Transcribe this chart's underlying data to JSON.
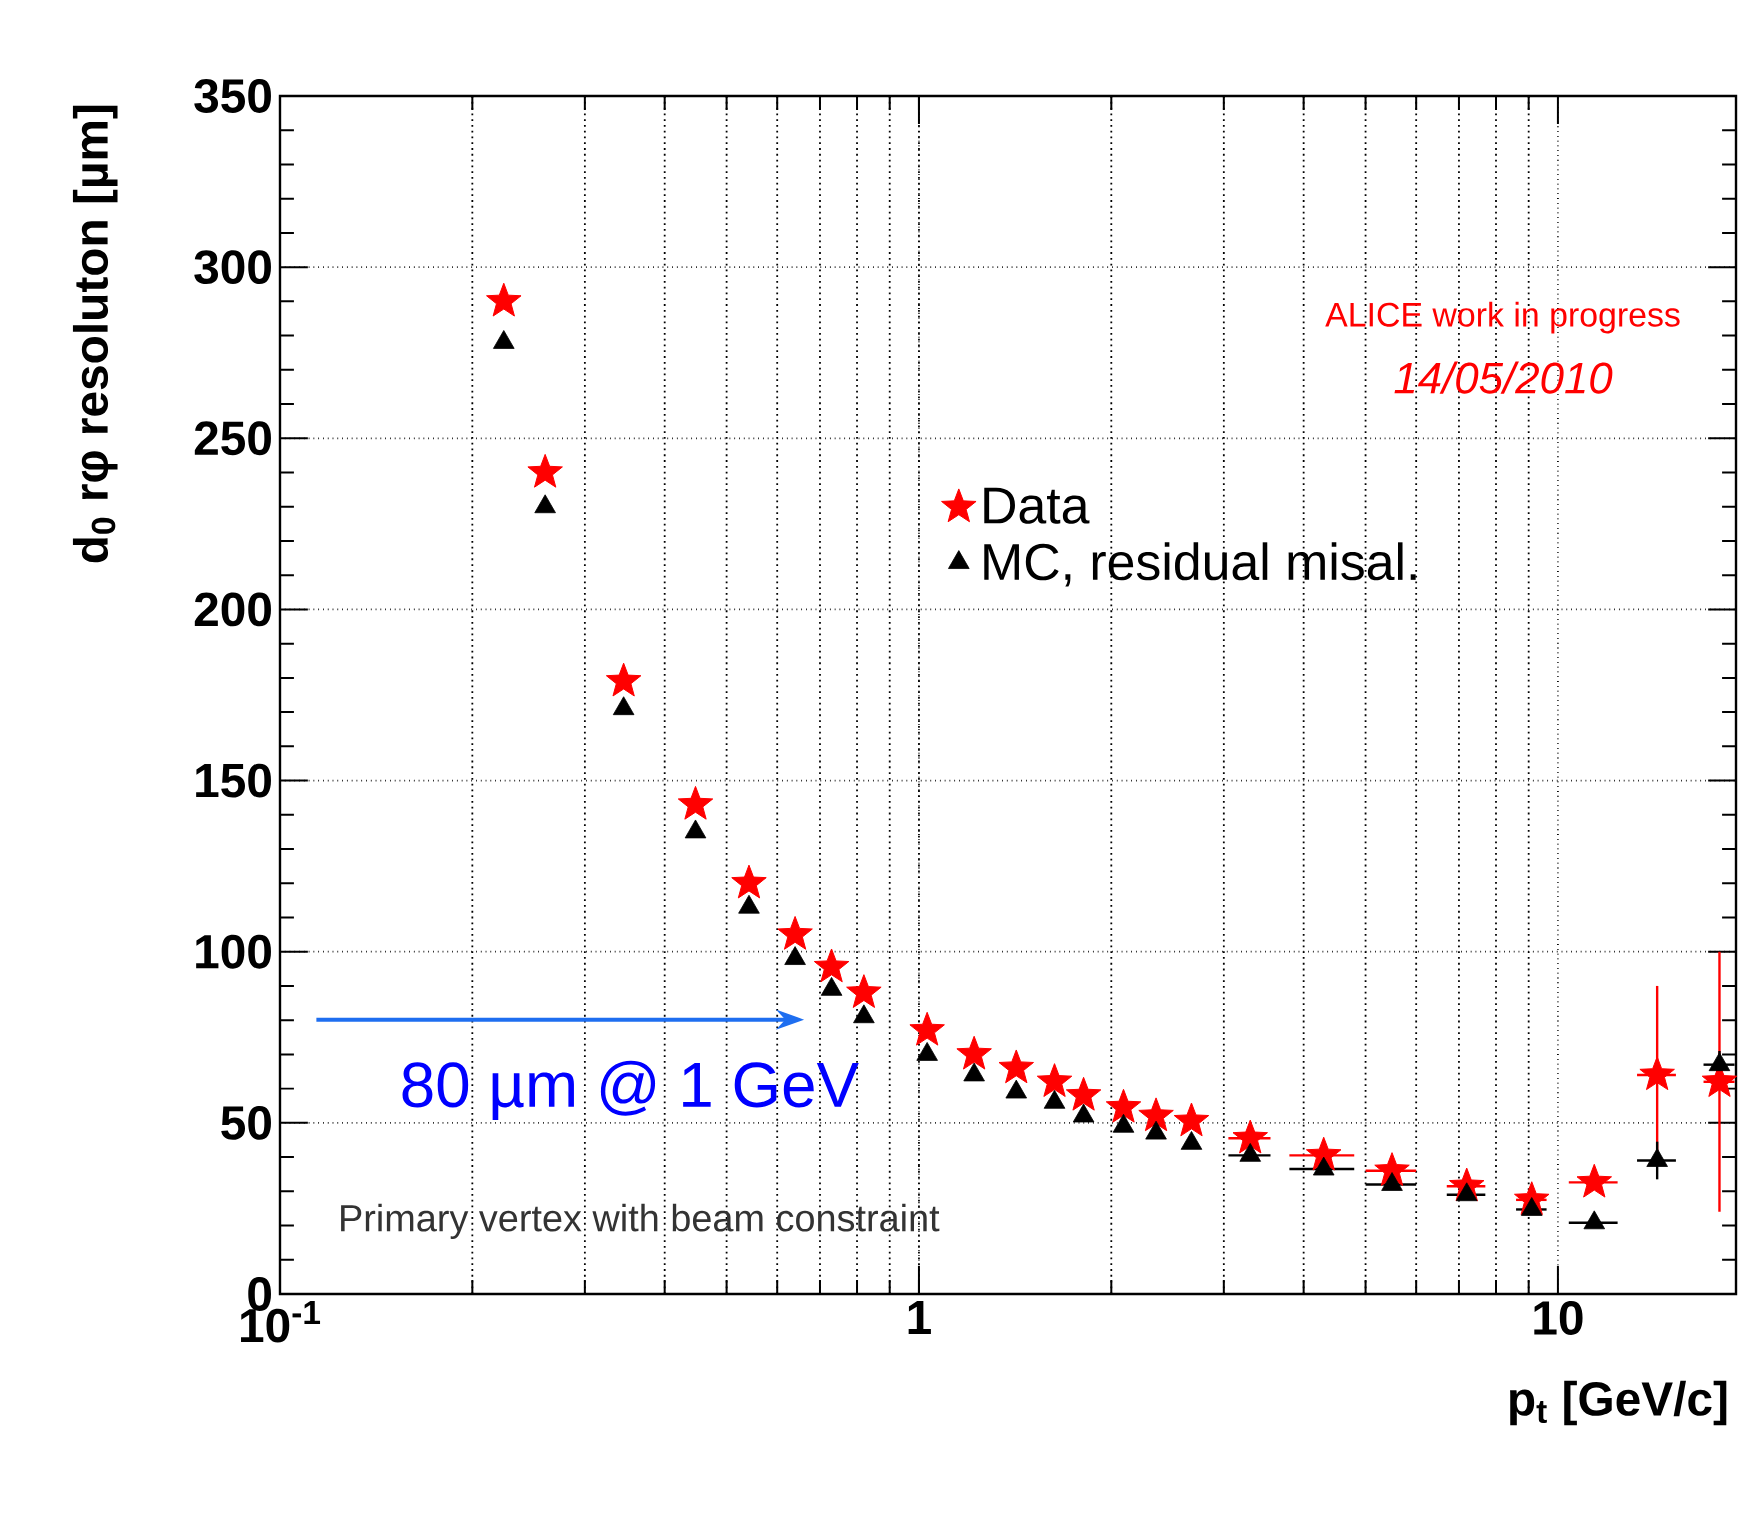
{
  "chart_data": {
    "type": "scatter",
    "xlabel": "p$_{t}$ [GeV/c]",
    "ylabel": "d$_{0}$ rφ resoluton [µm]",
    "log": "x",
    "xlim": [
      0.1,
      19
    ],
    "xticks": [
      {
        "value": 0.1,
        "label": "10$^{-1}$"
      },
      1,
      10
    ],
    "ylim": [
      0,
      350
    ],
    "yticks": [
      0,
      50,
      100,
      150,
      200,
      250,
      300,
      350
    ],
    "grid": true,
    "legend": "right",
    "x": [
      0.224,
      0.26,
      0.345,
      0.447,
      0.542,
      0.64,
      0.73,
      0.82,
      1.03,
      1.22,
      1.42,
      1.63,
      1.81,
      2.09,
      2.35,
      2.67,
      3.3,
      4.3,
      5.5,
      7.2,
      9.1,
      11.4,
      14.3,
      17.9
    ],
    "series": [
      {
        "name": "Data",
        "color": "#ff0000",
        "marker": "star",
        "values": [
          290,
          240,
          179,
          143,
          120,
          105,
          95.5,
          88,
          77,
          70,
          66,
          62,
          58,
          54.5,
          52,
          50.5,
          45.5,
          40.5,
          36,
          31.5,
          27.5,
          32.6,
          64,
          62
        ],
        "errors": [
          null,
          null,
          null,
          null,
          null,
          null,
          null,
          null,
          null,
          null,
          null,
          null,
          null,
          null,
          null,
          null,
          null,
          null,
          null,
          null,
          null,
          null,
          26,
          38
        ],
        "xerrors": [
          null,
          null,
          null,
          null,
          null,
          null,
          null,
          null,
          null,
          null,
          null,
          null,
          null,
          null,
          null,
          null,
          0.25,
          0.5,
          0.5,
          0.5,
          0.5,
          1,
          1,
          1
        ]
      },
      {
        "name": "MC, residual misal.",
        "color": "#000000",
        "marker": "triangle",
        "values": [
          278,
          230,
          171,
          135,
          113,
          98,
          89,
          81,
          70,
          64,
          59,
          56,
          52,
          49,
          47,
          44,
          40.5,
          36.5,
          32,
          29,
          24.7,
          20.8,
          39,
          67
        ],
        "errors": [
          null,
          null,
          null,
          null,
          null,
          null,
          null,
          null,
          null,
          null,
          null,
          null,
          null,
          null,
          null,
          null,
          null,
          null,
          null,
          null,
          null,
          null,
          5.5,
          4
        ],
        "xerrors": [
          null,
          null,
          null,
          null,
          null,
          null,
          null,
          null,
          null,
          null,
          null,
          null,
          null,
          null,
          null,
          null,
          0.25,
          0.5,
          0.5,
          0.5,
          0.5,
          1,
          1,
          1
        ]
      }
    ],
    "annotations": [
      "ALICE work in progress",
      "14/05/2010",
      "80 µm @ 1 GeV",
      "Primary vertex with beam constraint"
    ]
  }
}
